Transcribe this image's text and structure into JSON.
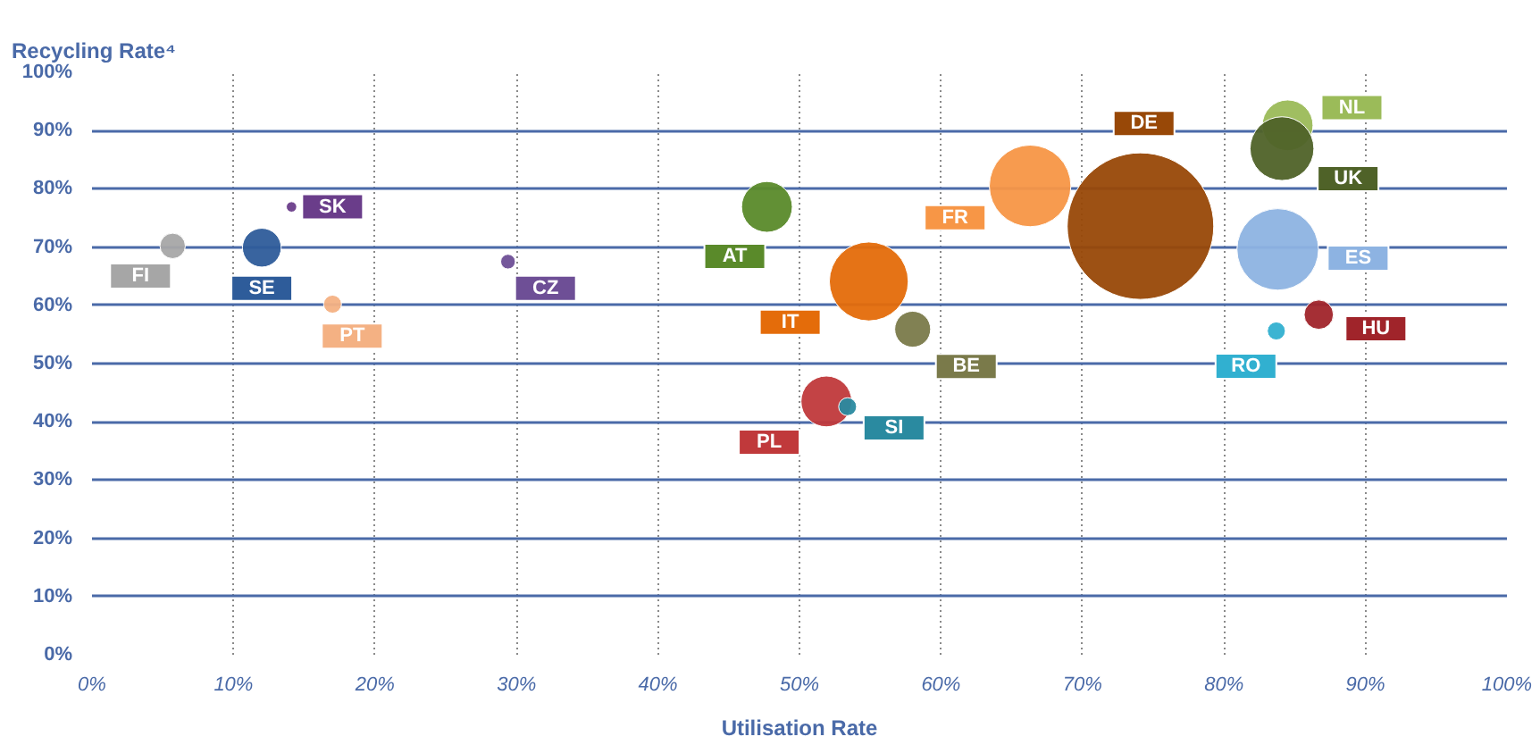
{
  "chart_data": {
    "type": "bubble",
    "ylabel": "Recycling Rate⁴",
    "xlabel": "Utilisation Rate",
    "xlim": [
      0,
      100
    ],
    "ylim": [
      0,
      100
    ],
    "xticks": [
      {
        "value": 0,
        "label": "0%"
      },
      {
        "value": 10,
        "label": "10%"
      },
      {
        "value": 20,
        "label": "20%"
      },
      {
        "value": 30,
        "label": "30%"
      },
      {
        "value": 40,
        "label": "40%"
      },
      {
        "value": 50,
        "label": "50%"
      },
      {
        "value": 60,
        "label": "60%"
      },
      {
        "value": 70,
        "label": "70%"
      },
      {
        "value": 80,
        "label": "80%"
      },
      {
        "value": 90,
        "label": "90%"
      },
      {
        "value": 100,
        "label": "100%"
      }
    ],
    "yticks": [
      {
        "value": 0,
        "label": "0%"
      },
      {
        "value": 10,
        "label": "10%"
      },
      {
        "value": 20,
        "label": "20%"
      },
      {
        "value": 30,
        "label": "30%"
      },
      {
        "value": 40,
        "label": "40%"
      },
      {
        "value": 50,
        "label": "50%"
      },
      {
        "value": 60,
        "label": "60%"
      },
      {
        "value": 70,
        "label": "70%"
      },
      {
        "value": 80,
        "label": "80%"
      },
      {
        "value": 90,
        "label": "90%"
      },
      {
        "value": 100,
        "label": "100%"
      }
    ],
    "grid": true,
    "series": [
      {
        "name": "FI",
        "color": "#a6a6a6",
        "x": [
          5.7
        ],
        "values": [
          70.2
        ],
        "sizes": [
          0.03
        ]
      },
      {
        "name": "SE",
        "color": "#2e5c9a",
        "x": [
          12.0
        ],
        "values": [
          69.9
        ],
        "sizes": [
          0.07
        ]
      },
      {
        "name": "SK",
        "color": "#6a3d8a",
        "x": [
          14.1
        ],
        "values": [
          76.9
        ],
        "sizes": [
          0.005
        ]
      },
      {
        "name": "PT",
        "color": "#f4b183",
        "x": [
          17.0
        ],
        "values": [
          60.2
        ],
        "sizes": [
          0.015
        ]
      },
      {
        "name": "CZ",
        "color": "#6e4f96",
        "x": [
          29.4
        ],
        "values": [
          67.5
        ],
        "sizes": [
          0.01
        ]
      },
      {
        "name": "AT",
        "color": "#5a8a2a",
        "x": [
          47.7
        ],
        "values": [
          76.9
        ],
        "sizes": [
          0.12
        ]
      },
      {
        "name": "IT",
        "color": "#e46c0a",
        "x": [
          54.9
        ],
        "values": [
          64.1
        ],
        "sizes": [
          0.29
        ]
      },
      {
        "name": "BE",
        "color": "#7a7a4a",
        "x": [
          58.0
        ],
        "values": [
          55.9
        ],
        "sizes": [
          0.06
        ]
      },
      {
        "name": "PL",
        "color": "#c0393b",
        "x": [
          51.9
        ],
        "values": [
          43.5
        ],
        "sizes": [
          0.12
        ]
      },
      {
        "name": "SI",
        "color": "#2a8aa0",
        "x": [
          53.4
        ],
        "values": [
          42.6
        ],
        "sizes": [
          0.015
        ]
      },
      {
        "name": "FR",
        "color": "#f79646",
        "x": [
          66.3
        ],
        "values": [
          80.5
        ],
        "sizes": [
          0.31
        ]
      },
      {
        "name": "DE",
        "color": "#984807",
        "x": [
          74.1
        ],
        "values": [
          73.6
        ],
        "sizes": [
          1
        ]
      },
      {
        "name": "NL",
        "color": "#9bbb59",
        "x": [
          84.5
        ],
        "values": [
          90.9
        ],
        "sizes": [
          0.12
        ]
      },
      {
        "name": "UK",
        "color": "#4f6228",
        "x": [
          84.1
        ],
        "values": [
          86.9
        ],
        "sizes": [
          0.19
        ]
      },
      {
        "name": "ES",
        "color": "#8db3e2",
        "x": [
          83.8
        ],
        "values": [
          69.6
        ],
        "sizes": [
          0.31
        ]
      },
      {
        "name": "RO",
        "color": "#31b0d0",
        "x": [
          83.7
        ],
        "values": [
          55.6
        ],
        "sizes": [
          0.015
        ]
      },
      {
        "name": "HU",
        "color": "#a0242a",
        "x": [
          86.7
        ],
        "values": [
          58.4
        ],
        "sizes": [
          0.04
        ]
      }
    ]
  }
}
